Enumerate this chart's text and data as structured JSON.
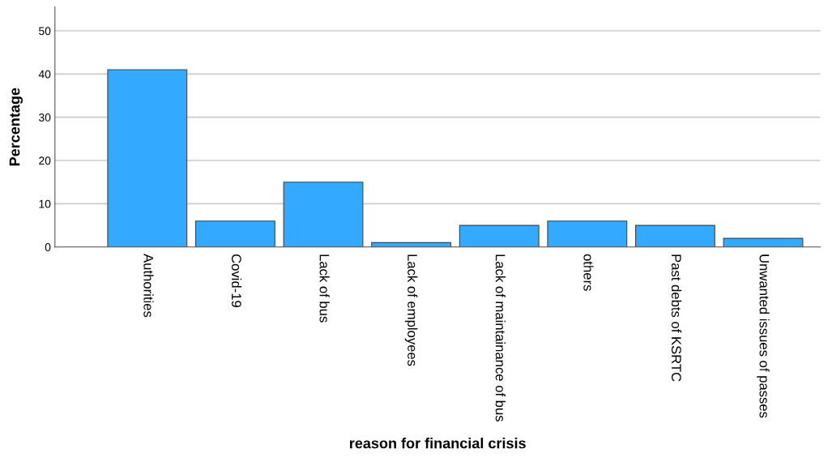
{
  "chart_data": {
    "type": "bar",
    "xlabel": "reason for financial crisis",
    "ylabel": "Percentage",
    "categories": [
      "Authorities",
      "Covid-19",
      "Lack of bus",
      "Lack of employees",
      "Lack of maintainance of bus",
      "others",
      "Past debts of KSRTC",
      "Unwanted issues of passes"
    ],
    "values": [
      41,
      6,
      15,
      1,
      5,
      6,
      5,
      2
    ],
    "color": "#33aaff",
    "ylim": [
      0,
      55.5
    ],
    "yticks": [
      0,
      10,
      20,
      30,
      40,
      50
    ],
    "grid": "y"
  }
}
